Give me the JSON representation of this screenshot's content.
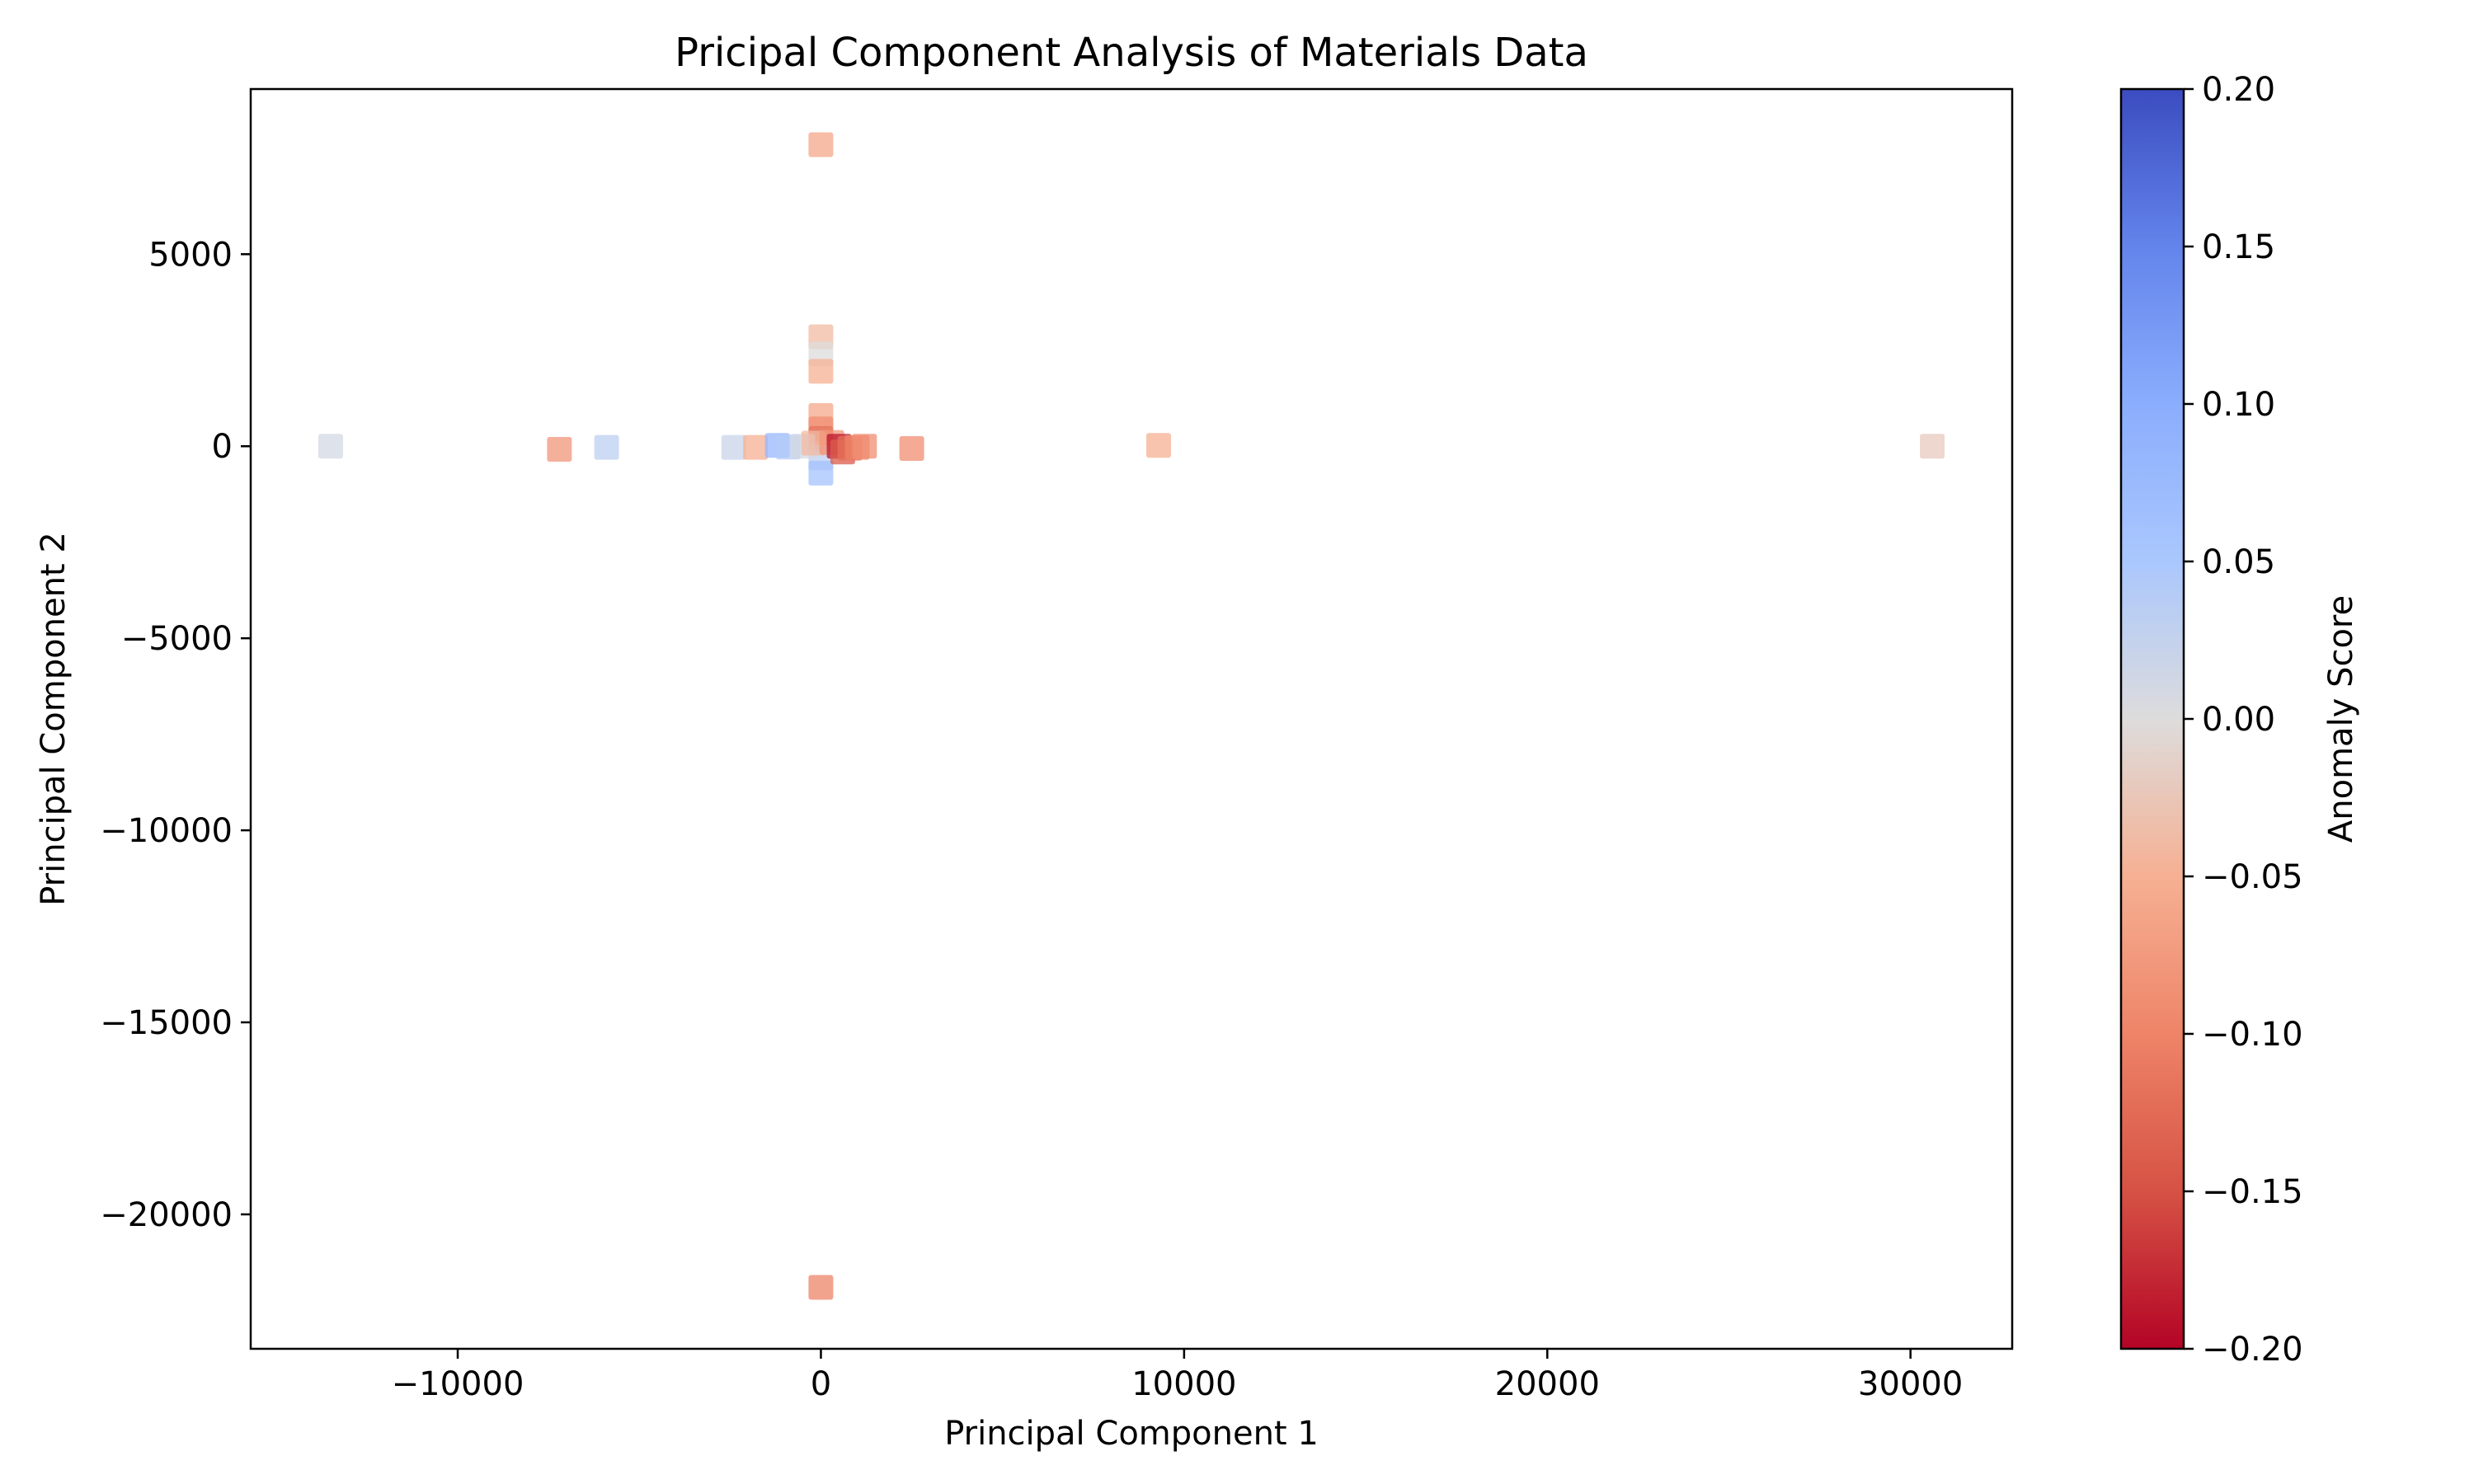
{
  "chart_data": {
    "type": "scatter",
    "title": "Pricipal Component Analysis of Materials Data",
    "xlabel": "Principal Component 1",
    "ylabel": "Principal Component 2",
    "xlim": [
      -15700,
      32800
    ],
    "ylim": [
      -23500,
      9300
    ],
    "xticks": [
      -10000,
      0,
      10000,
      20000,
      30000
    ],
    "xtick_labels": [
      "−10000",
      "0",
      "10000",
      "20000",
      "30000"
    ],
    "yticks": [
      5000,
      0,
      -5000,
      -10000,
      -15000,
      -20000
    ],
    "ytick_labels": [
      "5000",
      "0",
      "−5000",
      "−10000",
      "−15000",
      "−20000"
    ],
    "marker": "square",
    "marker_alpha": 0.75,
    "grid": false,
    "colormap": "coolwarm_r",
    "colorbar": {
      "label": "Anomaly Score",
      "min": -0.2,
      "max": 0.2,
      "ticks": [
        0.2,
        0.15,
        0.1,
        0.05,
        0.0,
        -0.05,
        -0.1,
        -0.15,
        -0.2
      ],
      "tick_labels": [
        "0.20",
        "0.15",
        "0.10",
        "0.05",
        "0.00",
        "−0.05",
        "−0.10",
        "−0.15",
        "−0.20"
      ],
      "color_low": "#b40426",
      "color_mid": "#dddcdc",
      "color_high": "#3b4cc0"
    },
    "points": [
      {
        "x": 0,
        "y": 7850,
        "score": -0.06
      },
      {
        "x": 0,
        "y": 2850,
        "score": -0.04
      },
      {
        "x": 0,
        "y": 2400,
        "score": 0.0
      },
      {
        "x": 0,
        "y": 1950,
        "score": -0.05
      },
      {
        "x": 0,
        "y": 800,
        "score": -0.06
      },
      {
        "x": 0,
        "y": 450,
        "score": -0.09
      },
      {
        "x": 0,
        "y": 200,
        "score": -0.12
      },
      {
        "x": 0,
        "y": -300,
        "score": 0.03
      },
      {
        "x": 0,
        "y": -700,
        "score": 0.06
      },
      {
        "x": 0,
        "y": -21900,
        "score": -0.1
      },
      {
        "x": -13500,
        "y": 0,
        "score": 0.01
      },
      {
        "x": -7200,
        "y": -80,
        "score": -0.08
      },
      {
        "x": -5900,
        "y": -30,
        "score": 0.03
      },
      {
        "x": -2400,
        "y": -30,
        "score": 0.02
      },
      {
        "x": -1800,
        "y": -30,
        "score": -0.05
      },
      {
        "x": -1200,
        "y": 20,
        "score": 0.08
      },
      {
        "x": -900,
        "y": -20,
        "score": 0.04
      },
      {
        "x": -500,
        "y": 0,
        "score": 0.01
      },
      {
        "x": -200,
        "y": 80,
        "score": -0.04
      },
      {
        "x": 300,
        "y": 100,
        "score": -0.08
      },
      {
        "x": 500,
        "y": 0,
        "score": -0.19
      },
      {
        "x": 600,
        "y": -150,
        "score": -0.14
      },
      {
        "x": 800,
        "y": -50,
        "score": -0.12
      },
      {
        "x": 1000,
        "y": -30,
        "score": -0.1
      },
      {
        "x": 1200,
        "y": 0,
        "score": -0.09
      },
      {
        "x": 2500,
        "y": -60,
        "score": -0.09
      },
      {
        "x": 9300,
        "y": 20,
        "score": -0.05
      },
      {
        "x": 30600,
        "y": 0,
        "score": -0.02
      }
    ]
  }
}
